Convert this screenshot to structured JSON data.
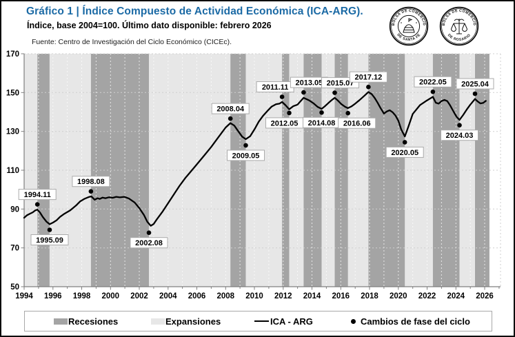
{
  "header": {
    "title": "Gráfico 1 | Índice Compuesto de Actividad Económica (ICA-ARG).",
    "subtitle": "Índice, base 2004=100. Último dato disponible: febrero 2026",
    "source": "Fuente: Centro de Investigación del Ciclo Económico (CICEc)."
  },
  "logos": [
    {
      "name": "bolsa-de-comercio-de-santa-fe",
      "top": "BOLSA DE COMERCIO",
      "bottom": "DE SANTA FE"
    },
    {
      "name": "bolsa-de-comercio-de-rosario",
      "top": "BOLSA DE COMERCIO",
      "bottom": "DE ROSARIO"
    }
  ],
  "legend": {
    "items": [
      {
        "type": "swatch",
        "color": "#a4a4a4",
        "label": "Recesiones"
      },
      {
        "type": "swatch",
        "color": "#e7e7e7",
        "label": "Expansiones"
      },
      {
        "type": "line",
        "color": "#000000",
        "label": "ICA - ARG"
      },
      {
        "type": "dot",
        "color": "#000000",
        "label": "Cambios de fase del ciclo"
      }
    ]
  },
  "chart_data": {
    "type": "line",
    "title": "Gráfico 1 | Índice Compuesto de Actividad Económica (ICA-ARG).",
    "subtitle": "Índice, base 2004=100. Último dato disponible: febrero 2026",
    "xlabel": "",
    "ylabel": "Índice, base 2004=100",
    "x_range": [
      1994,
      2027.1
    ],
    "y_range": [
      50,
      170
    ],
    "x_ticks": [
      1994,
      1996,
      1998,
      2000,
      2002,
      2004,
      2006,
      2008,
      2010,
      2012,
      2014,
      2016,
      2018,
      2020,
      2022,
      2024,
      2026
    ],
    "y_ticks": [
      50,
      70,
      90,
      110,
      130,
      150,
      170
    ],
    "grid": "dotted",
    "legend_position": "bottom",
    "colors": {
      "recession": "#a4a4a4",
      "expansion": "#e7e7e7",
      "line": "#000000",
      "title": "#1b6aa5"
    },
    "recessions": [
      [
        1994.92,
        1995.77
      ],
      [
        1998.64,
        2002.67
      ],
      [
        2008.33,
        2009.4
      ],
      [
        2011.92,
        2012.42
      ],
      [
        2013.42,
        2014.67
      ],
      [
        2015.58,
        2016.5
      ],
      [
        2017.92,
        2020.45
      ],
      [
        2022.4,
        2024.25
      ],
      [
        2025.33,
        2026.33
      ]
    ],
    "expansions": [
      [
        1994.0,
        1994.92
      ],
      [
        1995.77,
        1998.64
      ],
      [
        2002.67,
        2008.33
      ],
      [
        2009.4,
        2011.92
      ],
      [
        2012.42,
        2013.42
      ],
      [
        2014.67,
        2015.58
      ],
      [
        2016.5,
        2017.92
      ],
      [
        2020.45,
        2022.4
      ],
      [
        2024.25,
        2025.33
      ]
    ],
    "series": [
      {
        "name": "ICA - ARG",
        "points": [
          [
            1994.0,
            85.5
          ],
          [
            1994.2,
            86.8
          ],
          [
            1994.4,
            87.6
          ],
          [
            1994.6,
            88.3
          ],
          [
            1994.75,
            89.2
          ],
          [
            1994.92,
            89.7
          ],
          [
            1995.1,
            88.2
          ],
          [
            1995.3,
            85.9
          ],
          [
            1995.55,
            83.5
          ],
          [
            1995.77,
            82.2
          ],
          [
            1996.0,
            83.0
          ],
          [
            1996.25,
            84.2
          ],
          [
            1996.5,
            86.0
          ],
          [
            1996.8,
            87.6
          ],
          [
            1997.2,
            89.3
          ],
          [
            1997.6,
            91.8
          ],
          [
            1997.9,
            94.0
          ],
          [
            1998.2,
            95.3
          ],
          [
            1998.49,
            96.2
          ],
          [
            1998.67,
            96.5
          ],
          [
            1998.9,
            94.8
          ],
          [
            1999.1,
            95.6
          ],
          [
            1999.25,
            95.2
          ],
          [
            1999.45,
            95.9
          ],
          [
            1999.65,
            95.6
          ],
          [
            1999.9,
            96.1
          ],
          [
            2000.15,
            95.8
          ],
          [
            2000.4,
            96.3
          ],
          [
            2000.65,
            96.0
          ],
          [
            2000.96,
            96.3
          ],
          [
            2001.28,
            95.4
          ],
          [
            2001.68,
            93.4
          ],
          [
            2002.0,
            90.5
          ],
          [
            2002.32,
            87.0
          ],
          [
            2002.56,
            83.4
          ],
          [
            2002.8,
            81.4
          ],
          [
            2003.0,
            82.3
          ],
          [
            2003.2,
            84.5
          ],
          [
            2003.6,
            88.5
          ],
          [
            2004.0,
            93.0
          ],
          [
            2004.4,
            97.5
          ],
          [
            2004.8,
            102.0
          ],
          [
            2005.2,
            106.0
          ],
          [
            2005.6,
            109.5
          ],
          [
            2006.0,
            113.0
          ],
          [
            2006.5,
            117.5
          ],
          [
            2007.0,
            122.0
          ],
          [
            2007.5,
            127.0
          ],
          [
            2008.0,
            132.0
          ],
          [
            2008.33,
            134.3
          ],
          [
            2008.6,
            133.0
          ],
          [
            2008.9,
            129.8
          ],
          [
            2009.15,
            127.3
          ],
          [
            2009.4,
            126.0
          ],
          [
            2009.7,
            127.5
          ],
          [
            2010.0,
            131.0
          ],
          [
            2010.3,
            135.0
          ],
          [
            2010.6,
            138.0
          ],
          [
            2010.9,
            140.5
          ],
          [
            2011.2,
            142.8
          ],
          [
            2011.5,
            144.0
          ],
          [
            2011.74,
            144.3
          ],
          [
            2011.92,
            145.2
          ],
          [
            2012.15,
            143.6
          ],
          [
            2012.42,
            141.4
          ],
          [
            2012.7,
            143.0
          ],
          [
            2013.0,
            143.8
          ],
          [
            2013.2,
            145.5
          ],
          [
            2013.42,
            147.3
          ],
          [
            2013.8,
            146.0
          ],
          [
            2014.1,
            144.5
          ],
          [
            2014.4,
            142.6
          ],
          [
            2014.67,
            141.6
          ],
          [
            2014.9,
            143.0
          ],
          [
            2015.15,
            144.7
          ],
          [
            2015.4,
            146.3
          ],
          [
            2015.58,
            147.3
          ],
          [
            2015.8,
            145.9
          ],
          [
            2016.05,
            144.0
          ],
          [
            2016.3,
            142.7
          ],
          [
            2016.5,
            142.0
          ],
          [
            2016.75,
            142.9
          ],
          [
            2017.0,
            144.3
          ],
          [
            2017.3,
            146.1
          ],
          [
            2017.6,
            148.1
          ],
          [
            2017.92,
            150.3
          ],
          [
            2018.15,
            149.2
          ],
          [
            2018.35,
            147.3
          ],
          [
            2018.55,
            144.9
          ],
          [
            2018.75,
            142.2
          ],
          [
            2019.0,
            139.2
          ],
          [
            2019.2,
            140.3
          ],
          [
            2019.4,
            140.9
          ],
          [
            2019.6,
            139.9
          ],
          [
            2019.8,
            138.2
          ],
          [
            2020.0,
            135.5
          ],
          [
            2020.2,
            131.0
          ],
          [
            2020.45,
            127.4
          ],
          [
            2020.7,
            132.5
          ],
          [
            2021.0,
            139.0
          ],
          [
            2021.5,
            143.5
          ],
          [
            2022.0,
            146.0
          ],
          [
            2022.4,
            147.8
          ],
          [
            2022.6,
            144.8
          ],
          [
            2022.8,
            144.3
          ],
          [
            2023.0,
            145.6
          ],
          [
            2023.2,
            146.2
          ],
          [
            2023.4,
            145.6
          ],
          [
            2023.6,
            143.4
          ],
          [
            2023.85,
            140.0
          ],
          [
            2024.05,
            137.5
          ],
          [
            2024.25,
            135.9
          ],
          [
            2024.5,
            138.4
          ],
          [
            2024.75,
            141.2
          ],
          [
            2025.0,
            143.8
          ],
          [
            2025.33,
            146.7
          ],
          [
            2025.5,
            145.5
          ],
          [
            2025.7,
            144.4
          ],
          [
            2025.9,
            144.7
          ],
          [
            2026.08,
            145.7
          ]
        ]
      }
    ],
    "phase_changes": [
      {
        "label": "1994.11",
        "x": 1994.92,
        "y": 92.4,
        "type": "peak",
        "label_pos": "above",
        "dx": 0
      },
      {
        "label": "1995.09",
        "x": 1995.77,
        "y": 79.3,
        "type": "trough",
        "label_pos": "below",
        "dx": 0
      },
      {
        "label": "1998.08",
        "x": 1998.64,
        "y": 99.1,
        "type": "peak",
        "label_pos": "above",
        "dx": 0
      },
      {
        "label": "2002.08",
        "x": 2002.67,
        "y": 77.8,
        "type": "trough",
        "label_pos": "below",
        "dx": 0
      },
      {
        "label": "2008.04",
        "x": 2008.33,
        "y": 136.6,
        "type": "peak",
        "label_pos": "above",
        "dx": 0
      },
      {
        "label": "2009.05",
        "x": 2009.4,
        "y": 122.8,
        "type": "trough",
        "label_pos": "below",
        "dx": 0
      },
      {
        "label": "2011.11",
        "x": 2011.92,
        "y": 147.8,
        "type": "peak",
        "label_pos": "above",
        "dx": -10
      },
      {
        "label": "2012.05",
        "x": 2012.42,
        "y": 139.5,
        "type": "trough",
        "label_pos": "below",
        "dx": -7
      },
      {
        "label": "2013.05",
        "x": 2013.42,
        "y": 150.1,
        "type": "peak",
        "label_pos": "above",
        "dx": 8
      },
      {
        "label": "2014.08",
        "x": 2014.67,
        "y": 139.7,
        "type": "trough",
        "label_pos": "below",
        "dx": 0
      },
      {
        "label": "2015.07",
        "x": 2015.58,
        "y": 149.9,
        "type": "peak",
        "label_pos": "above",
        "dx": 8
      },
      {
        "label": "2016.06",
        "x": 2016.5,
        "y": 139.4,
        "type": "trough",
        "label_pos": "below",
        "dx": 13
      },
      {
        "label": "2017.12",
        "x": 2017.92,
        "y": 152.9,
        "type": "peak",
        "label_pos": "above",
        "dx": 0
      },
      {
        "label": "2020.05",
        "x": 2020.45,
        "y": 124.4,
        "type": "trough",
        "label_pos": "below",
        "dx": 0
      },
      {
        "label": "2022.05",
        "x": 2022.4,
        "y": 150.4,
        "type": "peak",
        "label_pos": "above",
        "dx": 0
      },
      {
        "label": "2024.03",
        "x": 2024.25,
        "y": 133.2,
        "type": "trough",
        "label_pos": "below",
        "dx": 0
      },
      {
        "label": "2025.04",
        "x": 2025.33,
        "y": 149.4,
        "type": "peak",
        "label_pos": "above",
        "dx": 0
      }
    ]
  }
}
